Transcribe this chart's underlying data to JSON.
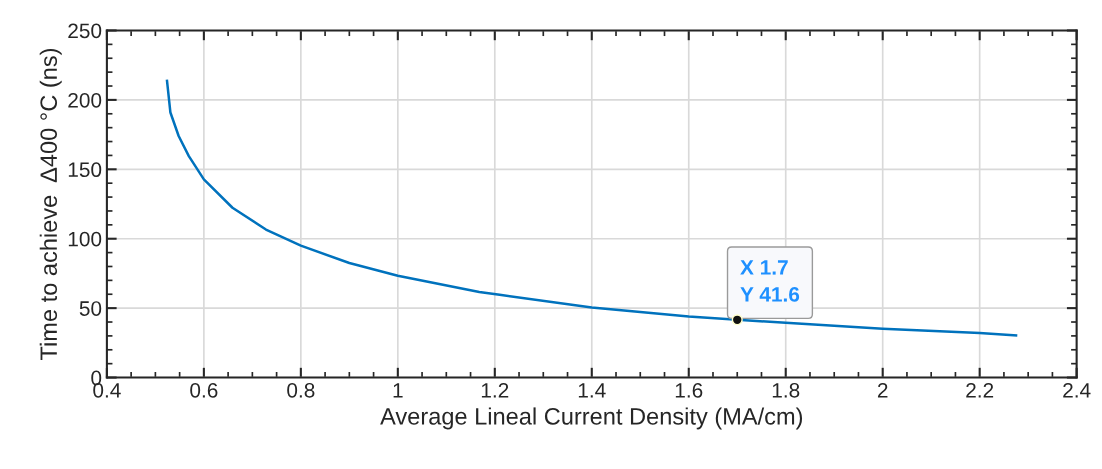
{
  "chart_data": {
    "type": "line",
    "xlabel": "Average Lineal Current Density (MA/cm)",
    "ylabel": "Time to achieve  Δ400 °C (ns)",
    "x": [
      0.524,
      0.531,
      0.548,
      0.569,
      0.6,
      0.659,
      0.728,
      0.8,
      0.9,
      1.0,
      1.168,
      1.21,
      1.4,
      1.6,
      1.7,
      1.8,
      2.0,
      2.2,
      2.275
    ],
    "series": [
      {
        "color": "#0072bd",
        "values": [
          213.7,
          190.9,
          174,
          159.5,
          142.7,
          122.3,
          106.6,
          95,
          82.5,
          73.3,
          61.6,
          59.6,
          50.4,
          44,
          41.6,
          39.5,
          35.2,
          32,
          30.4
        ]
      }
    ],
    "xlim": [
      0.4,
      2.4
    ],
    "ylim": [
      0,
      250
    ],
    "xticks": [
      0.4,
      0.6,
      0.8,
      1,
      1.2,
      1.4,
      1.6,
      1.8,
      2,
      2.2,
      2.4
    ],
    "yticks": [
      0,
      50,
      100,
      150,
      200,
      250
    ],
    "grid": true,
    "marker": "none",
    "line_style": "solid",
    "annotations": [
      {
        "text": "X 1.7\nY 41.6",
        "x": 1.7,
        "y": 41.6
      }
    ]
  }
}
